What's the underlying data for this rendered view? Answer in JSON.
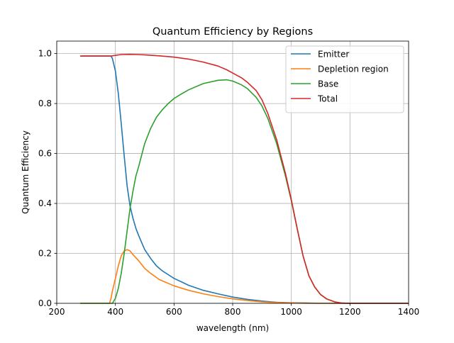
{
  "chart_data": {
    "type": "line",
    "title": "Quantum Efficiency by Regions",
    "xlabel": "wavelength (nm)",
    "ylabel": "Quantum Efficiency",
    "xlim": [
      200,
      1400
    ],
    "ylim": [
      0.0,
      1.05
    ],
    "xticks": [
      200,
      400,
      600,
      800,
      1000,
      1200,
      1400
    ],
    "xtick_labels": [
      "200",
      "400",
      "600",
      "800",
      "1000",
      "1200",
      "1400"
    ],
    "yticks": [
      0.0,
      0.2,
      0.4,
      0.6,
      0.8,
      1.0
    ],
    "ytick_labels": [
      "0.0",
      "0.2",
      "0.4",
      "0.6",
      "0.8",
      "1.0"
    ],
    "grid": true,
    "legend_position": "top-right",
    "series": [
      {
        "name": "Emitter",
        "color": "#1f77b4",
        "x": [
          280,
          300,
          350,
          385,
          390,
          400,
          410,
          420,
          430,
          440,
          450,
          460,
          470,
          480,
          500,
          520,
          540,
          560,
          580,
          600,
          650,
          700,
          750,
          800,
          850,
          900,
          950,
          1000,
          1050,
          1100,
          1150,
          1200,
          1300,
          1400
        ],
        "y": [
          0.99,
          0.99,
          0.99,
          0.99,
          0.98,
          0.93,
          0.84,
          0.72,
          0.59,
          0.47,
          0.39,
          0.34,
          0.3,
          0.27,
          0.215,
          0.18,
          0.15,
          0.13,
          0.115,
          0.1,
          0.072,
          0.052,
          0.038,
          0.025,
          0.016,
          0.009,
          0.004,
          0.002,
          0.001,
          0.0,
          0.0,
          0.0,
          0.0,
          0.0
        ]
      },
      {
        "name": "Depletion region",
        "color": "#ff7f0e",
        "x": [
          280,
          350,
          380,
          385,
          390,
          400,
          410,
          420,
          430,
          440,
          450,
          460,
          480,
          500,
          520,
          550,
          600,
          650,
          700,
          750,
          800,
          850,
          900,
          950,
          1000,
          1050,
          1100,
          1150,
          1200,
          1300,
          1400
        ],
        "y": [
          0.0,
          0.0,
          0.0,
          0.02,
          0.05,
          0.1,
          0.15,
          0.19,
          0.21,
          0.215,
          0.21,
          0.195,
          0.17,
          0.14,
          0.12,
          0.095,
          0.07,
          0.052,
          0.038,
          0.027,
          0.018,
          0.011,
          0.006,
          0.003,
          0.001,
          0.0,
          0.0,
          0.0,
          0.0,
          0.0,
          0.0
        ]
      },
      {
        "name": "Base",
        "color": "#2ca02c",
        "x": [
          280,
          350,
          385,
          390,
          400,
          410,
          420,
          430,
          440,
          450,
          460,
          470,
          480,
          500,
          520,
          540,
          560,
          580,
          600,
          620,
          650,
          700,
          750,
          780,
          800,
          830,
          850,
          880,
          900,
          920,
          950,
          980,
          1000,
          1020,
          1040,
          1060,
          1080,
          1100,
          1120,
          1150,
          1170,
          1200,
          1300,
          1400
        ],
        "y": [
          0.0,
          0.0,
          0.0,
          0.0,
          0.02,
          0.06,
          0.12,
          0.2,
          0.29,
          0.38,
          0.45,
          0.51,
          0.55,
          0.64,
          0.7,
          0.745,
          0.775,
          0.8,
          0.82,
          0.835,
          0.855,
          0.88,
          0.893,
          0.895,
          0.89,
          0.875,
          0.86,
          0.825,
          0.79,
          0.74,
          0.64,
          0.51,
          0.41,
          0.3,
          0.19,
          0.11,
          0.065,
          0.035,
          0.018,
          0.005,
          0.001,
          0.0,
          0.0,
          0.0
        ]
      },
      {
        "name": "Total",
        "color": "#d62728",
        "x": [
          280,
          300,
          350,
          385,
          400,
          420,
          450,
          480,
          500,
          550,
          600,
          650,
          700,
          750,
          780,
          800,
          830,
          850,
          880,
          900,
          920,
          950,
          980,
          1000,
          1020,
          1040,
          1060,
          1080,
          1100,
          1120,
          1150,
          1170,
          1200,
          1300,
          1400
        ],
        "y": [
          0.99,
          0.99,
          0.99,
          0.99,
          0.993,
          0.996,
          0.997,
          0.996,
          0.995,
          0.991,
          0.986,
          0.978,
          0.966,
          0.95,
          0.935,
          0.922,
          0.903,
          0.885,
          0.852,
          0.815,
          0.76,
          0.655,
          0.52,
          0.415,
          0.3,
          0.19,
          0.11,
          0.065,
          0.035,
          0.018,
          0.005,
          0.001,
          0.0,
          0.0,
          0.0
        ]
      }
    ]
  }
}
